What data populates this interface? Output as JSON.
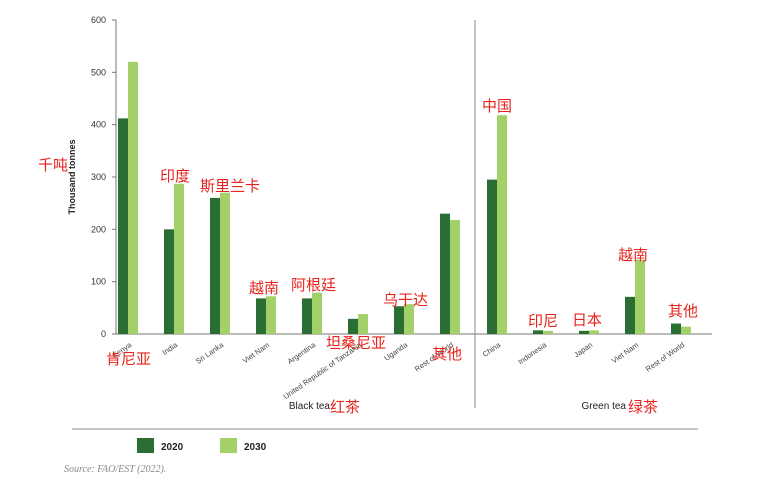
{
  "chart_data": {
    "type": "bar",
    "ylabel": "Thousand tonnes",
    "ylabel_annotation": "千吨",
    "ylim": [
      0,
      600
    ],
    "yticks": [
      "0",
      "100",
      "200",
      "300",
      "400",
      "500",
      "600"
    ],
    "colors": {
      "2020": "#2a6e33",
      "2030": "#a3d069"
    },
    "legend": [
      {
        "name": "2020",
        "color": "#2a6e33"
      },
      {
        "name": "2030",
        "color": "#a3d069"
      }
    ],
    "groups": [
      {
        "label": "Black tea",
        "label_zh": "红茶",
        "categories": [
          {
            "name": "Kenya",
            "zh": "肯尼亚",
            "v2020": 412,
            "v2030": 520
          },
          {
            "name": "India",
            "zh": "印度",
            "v2020": 200,
            "v2030": 287
          },
          {
            "name": "Sri Lanka",
            "zh": "斯里兰卡",
            "v2020": 260,
            "v2030": 270
          },
          {
            "name": "Viet Nam",
            "zh": "越南",
            "v2020": 68,
            "v2030": 72
          },
          {
            "name": "Argentina",
            "zh": "阿根廷",
            "v2020": 68,
            "v2030": 79
          },
          {
            "name": "United Republic of Tanzania",
            "zh": "坦桑尼亚",
            "v2020": 29,
            "v2030": 38
          },
          {
            "name": "Uganda",
            "zh": "乌干达",
            "v2020": 53,
            "v2030": 57
          },
          {
            "name": "Rest of World",
            "zh": "其他",
            "v2020": 230,
            "v2030": 218
          }
        ]
      },
      {
        "label": "Green tea",
        "label_zh": "绿茶",
        "categories": [
          {
            "name": "China",
            "zh": "中国",
            "v2020": 295,
            "v2030": 418
          },
          {
            "name": "Indonesia",
            "zh": "印尼",
            "v2020": 7,
            "v2030": 6
          },
          {
            "name": "Japan",
            "zh": "日本",
            "v2020": 6,
            "v2030": 7
          },
          {
            "name": "Viet Nam",
            "zh": "越南",
            "v2020": 71,
            "v2030": 142
          },
          {
            "name": "Rest of World",
            "zh": "其他",
            "v2020": 20,
            "v2030": 14
          }
        ]
      }
    ],
    "source": "Source: FAO/EST (2022)."
  }
}
